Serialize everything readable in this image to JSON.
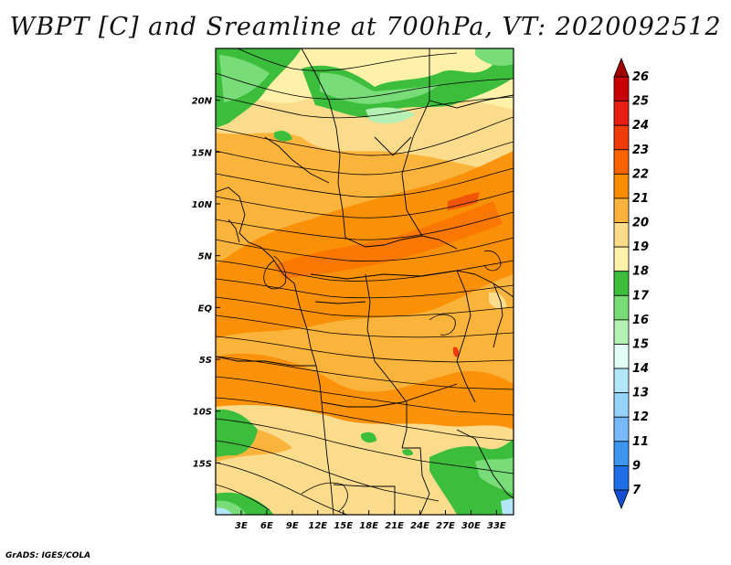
{
  "title": "WBPT [C] and Sreamline at 700hPa, VT: 2020092512",
  "credit": "GrADS: IGES/COLA",
  "map": {
    "lon_range": [
      0,
      35
    ],
    "lat_range": [
      -20,
      25
    ],
    "x_ticks": [
      {
        "lon": 3,
        "label": "3E"
      },
      {
        "lon": 6,
        "label": "6E"
      },
      {
        "lon": 9,
        "label": "9E"
      },
      {
        "lon": 12,
        "label": "12E"
      },
      {
        "lon": 15,
        "label": "15E"
      },
      {
        "lon": 18,
        "label": "18E"
      },
      {
        "lon": 21,
        "label": "21E"
      },
      {
        "lon": 24,
        "label": "24E"
      },
      {
        "lon": 27,
        "label": "27E"
      },
      {
        "lon": 30,
        "label": "30E"
      },
      {
        "lon": 33,
        "label": "33E"
      }
    ],
    "y_ticks": [
      {
        "lat": 20,
        "label": "20N"
      },
      {
        "lat": 15,
        "label": "15N"
      },
      {
        "lat": 10,
        "label": "10N"
      },
      {
        "lat": 5,
        "label": "5N"
      },
      {
        "lat": 0,
        "label": "EQ"
      },
      {
        "lat": -5,
        "label": "5S"
      },
      {
        "lat": -10,
        "label": "10S"
      },
      {
        "lat": -15,
        "label": "15S"
      }
    ]
  },
  "colorbar": {
    "levels": [
      {
        "label": "26",
        "color": "#a00000"
      },
      {
        "label": "25",
        "color": "#c80000"
      },
      {
        "label": "24",
        "color": "#e61e14"
      },
      {
        "label": "23",
        "color": "#f03c0a"
      },
      {
        "label": "22",
        "color": "#fa6400"
      },
      {
        "label": "21",
        "color": "#fa8c00"
      },
      {
        "label": "20",
        "color": "#fab43c"
      },
      {
        "label": "19",
        "color": "#fadc8c"
      },
      {
        "label": "18",
        "color": "#fff0aa"
      },
      {
        "label": "17",
        "color": "#3cbe3c"
      },
      {
        "label": "16",
        "color": "#78dc78"
      },
      {
        "label": "15",
        "color": "#b4f0b4"
      },
      {
        "label": "14",
        "color": "#e1fff5"
      },
      {
        "label": "13",
        "color": "#b4e6fa"
      },
      {
        "label": "12",
        "color": "#96d2fa"
      },
      {
        "label": "11",
        "color": "#78b9fa"
      },
      {
        "label": "9",
        "color": "#3c96f0"
      },
      {
        "label": "7",
        "color": "#1e6ee6"
      }
    ],
    "bottom_color": "#1450d2"
  }
}
